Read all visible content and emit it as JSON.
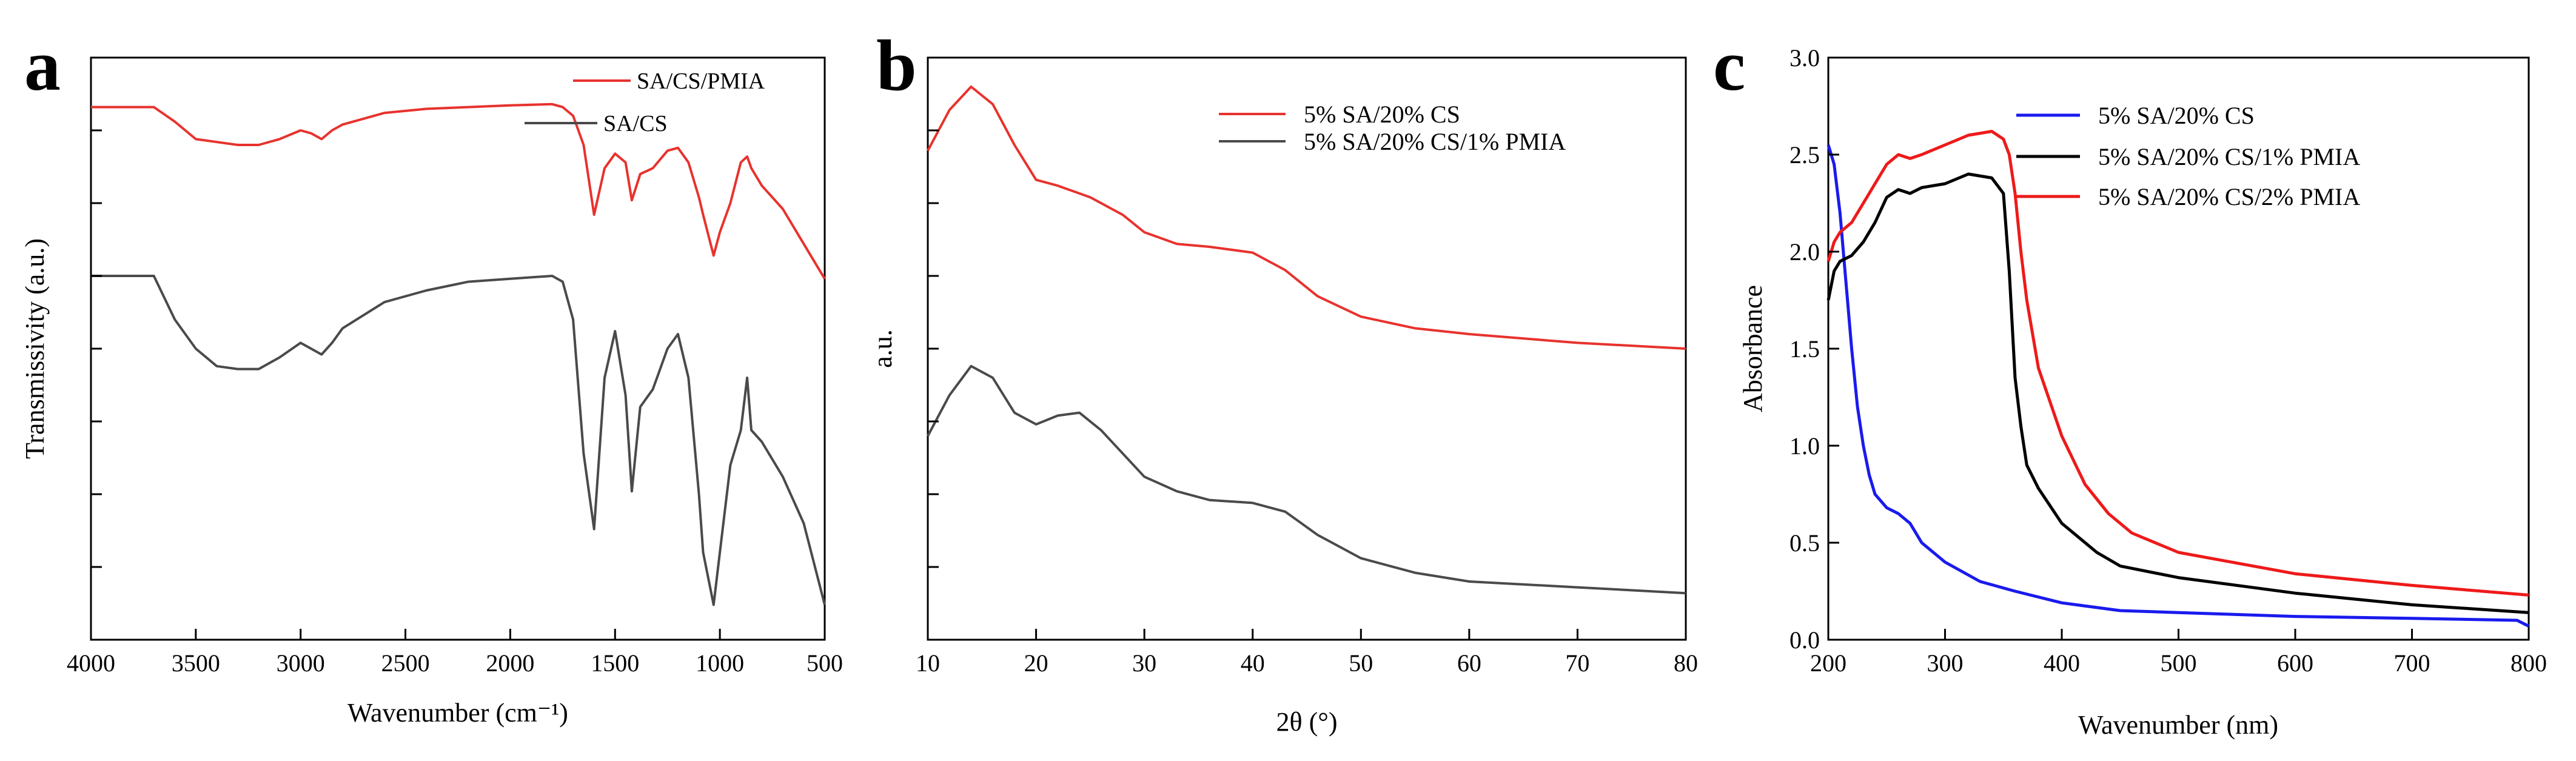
{
  "figure": {
    "panels": [
      "a",
      "b",
      "c"
    ]
  },
  "chart_data": [
    {
      "id": "a",
      "panel_label": "a",
      "type": "line",
      "title": "",
      "xlabel": "Wavenumber (cm⁻¹)",
      "ylabel": "Transmissivity (a.u.)",
      "xlim": [
        4000,
        500
      ],
      "ylim": [
        0,
        10
      ],
      "x_ticks": [
        4000,
        3500,
        3000,
        2500,
        2000,
        1500,
        1000,
        500
      ],
      "y_tick_labels_shown": false,
      "legend_position": "top-right",
      "series": [
        {
          "name": "SA/CS/PMIA",
          "color": "#e8322d",
          "x": [
            4000,
            3700,
            3600,
            3500,
            3400,
            3300,
            3200,
            3100,
            3000,
            2950,
            2900,
            2850,
            2800,
            2600,
            2400,
            2200,
            2000,
            1800,
            1750,
            1700,
            1650,
            1600,
            1550,
            1500,
            1450,
            1420,
            1380,
            1320,
            1250,
            1200,
            1150,
            1100,
            1080,
            1030,
            1000,
            950,
            900,
            870,
            850,
            800,
            700,
            600,
            500
          ],
          "y": [
            9.15,
            9.15,
            8.9,
            8.6,
            8.55,
            8.5,
            8.5,
            8.6,
            8.75,
            8.7,
            8.6,
            8.75,
            8.85,
            9.05,
            9.12,
            9.15,
            9.18,
            9.2,
            9.15,
            9.0,
            8.5,
            7.3,
            8.1,
            8.35,
            8.2,
            7.55,
            8.0,
            8.1,
            8.4,
            8.45,
            8.2,
            7.6,
            7.3,
            6.6,
            7.0,
            7.5,
            8.2,
            8.3,
            8.1,
            7.8,
            7.4,
            6.8,
            6.2
          ]
        },
        {
          "name": "SA/CS",
          "color": "#4a4a4a",
          "x": [
            4000,
            3700,
            3600,
            3500,
            3400,
            3300,
            3200,
            3100,
            3000,
            2950,
            2900,
            2850,
            2800,
            2600,
            2400,
            2200,
            2000,
            1800,
            1750,
            1700,
            1650,
            1600,
            1550,
            1500,
            1450,
            1420,
            1380,
            1320,
            1250,
            1200,
            1150,
            1100,
            1080,
            1030,
            1000,
            950,
            900,
            870,
            850,
            800,
            700,
            600,
            500
          ],
          "y": [
            6.25,
            6.25,
            5.5,
            5.0,
            4.7,
            4.65,
            4.65,
            4.85,
            5.1,
            5.0,
            4.9,
            5.1,
            5.35,
            5.8,
            6.0,
            6.15,
            6.2,
            6.25,
            6.15,
            5.5,
            3.2,
            1.9,
            4.5,
            5.3,
            4.2,
            2.55,
            4.0,
            4.3,
            5.0,
            5.25,
            4.5,
            2.5,
            1.5,
            0.6,
            1.5,
            3.0,
            3.6,
            4.5,
            3.6,
            3.4,
            2.8,
            2.0,
            0.6
          ]
        }
      ]
    },
    {
      "id": "b",
      "panel_label": "b",
      "type": "line",
      "title": "",
      "xlabel": "2θ (°)",
      "ylabel": "a.u.",
      "xlim": [
        10,
        80
      ],
      "ylim": [
        0,
        10
      ],
      "x_ticks": [
        10,
        20,
        30,
        40,
        50,
        60,
        70,
        80
      ],
      "y_tick_labels_shown": false,
      "legend_position": "top-right",
      "series": [
        {
          "name": "5% SA/20% CS",
          "color": "#e8322d",
          "x": [
            10,
            12,
            14,
            16,
            18,
            20,
            22,
            25,
            28,
            30,
            33,
            36,
            40,
            43,
            46,
            50,
            55,
            60,
            70,
            80
          ],
          "y": [
            8.4,
            9.1,
            9.5,
            9.2,
            8.5,
            7.9,
            7.8,
            7.6,
            7.3,
            7.0,
            6.8,
            6.75,
            6.65,
            6.35,
            5.9,
            5.55,
            5.35,
            5.25,
            5.1,
            5.0
          ]
        },
        {
          "name": "5% SA/20% CS/1% PMIA",
          "color": "#4a4a4a",
          "x": [
            10,
            12,
            14,
            16,
            18,
            20,
            22,
            24,
            26,
            28,
            30,
            33,
            36,
            40,
            43,
            46,
            50,
            55,
            60,
            70,
            80
          ],
          "y": [
            3.5,
            4.2,
            4.7,
            4.5,
            3.9,
            3.7,
            3.85,
            3.9,
            3.6,
            3.2,
            2.8,
            2.55,
            2.4,
            2.35,
            2.2,
            1.8,
            1.4,
            1.15,
            1.0,
            0.9,
            0.8
          ]
        }
      ]
    },
    {
      "id": "c",
      "panel_label": "c",
      "type": "line",
      "title": "",
      "xlabel": "Wavenumber (nm)",
      "ylabel": "Absorbance",
      "xlim": [
        200,
        800
      ],
      "ylim": [
        0,
        3.0
      ],
      "x_ticks": [
        200,
        300,
        400,
        500,
        600,
        700,
        800
      ],
      "y_ticks": [
        0.0,
        0.5,
        1.0,
        1.5,
        2.0,
        2.5,
        3.0
      ],
      "x_tick_labels": [
        "200",
        "300",
        "400",
        "500",
        "600",
        "700",
        "800"
      ],
      "y_tick_labels": [
        "0.0",
        "0.5",
        "1.0",
        "1.5",
        "2.0",
        "2.5",
        "3.0"
      ],
      "legend_position": "top-right",
      "series": [
        {
          "name": "5% SA/20% CS",
          "color": "#1a1aee",
          "x": [
            200,
            205,
            210,
            215,
            220,
            225,
            230,
            235,
            240,
            250,
            260,
            270,
            280,
            300,
            330,
            360,
            400,
            450,
            500,
            600,
            700,
            790,
            800
          ],
          "y": [
            2.55,
            2.45,
            2.2,
            1.85,
            1.5,
            1.2,
            1.0,
            0.85,
            0.75,
            0.68,
            0.65,
            0.6,
            0.5,
            0.4,
            0.3,
            0.25,
            0.19,
            0.15,
            0.14,
            0.12,
            0.11,
            0.1,
            0.07
          ]
        },
        {
          "name": "5% SA/20% CS/1% PMIA",
          "color": "#000000",
          "x": [
            200,
            205,
            210,
            220,
            230,
            240,
            250,
            260,
            270,
            280,
            300,
            320,
            340,
            350,
            355,
            360,
            365,
            370,
            380,
            400,
            430,
            450,
            500,
            600,
            700,
            800
          ],
          "y": [
            1.75,
            1.9,
            1.95,
            1.98,
            2.05,
            2.15,
            2.28,
            2.32,
            2.3,
            2.33,
            2.35,
            2.4,
            2.38,
            2.3,
            1.9,
            1.35,
            1.1,
            0.9,
            0.78,
            0.6,
            0.45,
            0.38,
            0.32,
            0.24,
            0.18,
            0.14
          ]
        },
        {
          "name": "5% SA/20% CS/2% PMIA",
          "color": "#ee1a1a",
          "x": [
            200,
            205,
            210,
            220,
            230,
            240,
            250,
            260,
            270,
            280,
            300,
            320,
            340,
            350,
            355,
            360,
            365,
            370,
            380,
            400,
            420,
            440,
            460,
            500,
            600,
            700,
            800
          ],
          "y": [
            1.95,
            2.05,
            2.1,
            2.15,
            2.25,
            2.35,
            2.45,
            2.5,
            2.48,
            2.5,
            2.55,
            2.6,
            2.62,
            2.58,
            2.5,
            2.3,
            2.0,
            1.75,
            1.4,
            1.05,
            0.8,
            0.65,
            0.55,
            0.45,
            0.34,
            0.28,
            0.23
          ]
        }
      ]
    }
  ]
}
